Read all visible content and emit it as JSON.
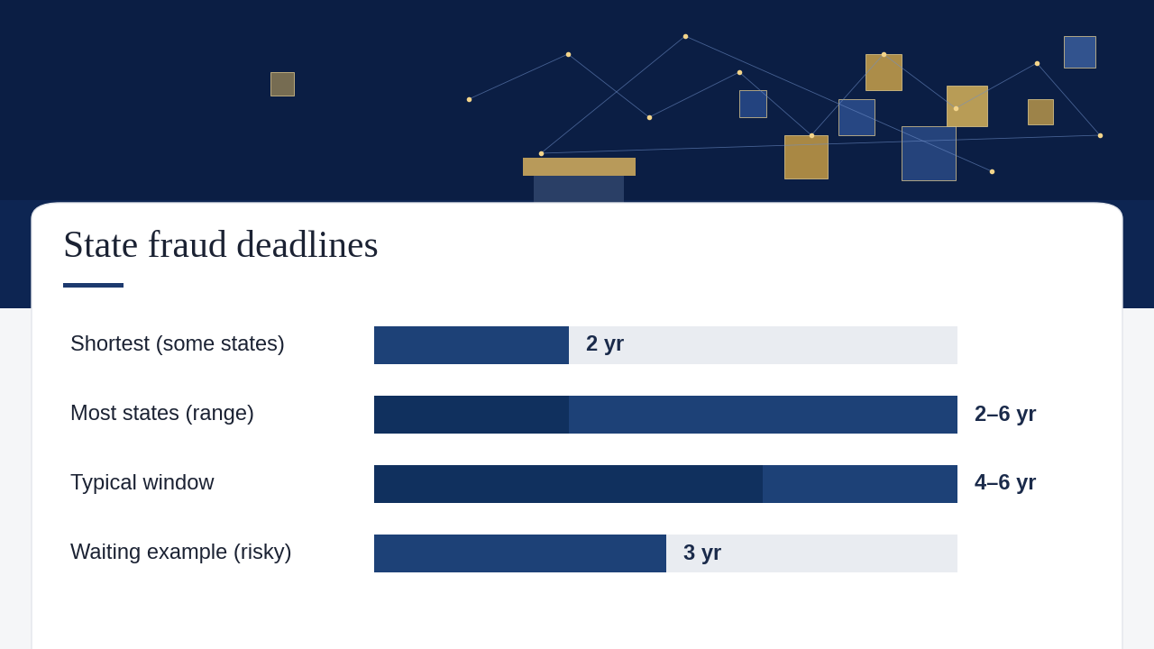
{
  "chart_data": {
    "type": "bar",
    "orientation": "horizontal",
    "title": "State fraud deadlines",
    "categories": [
      "Shortest (some states)",
      "Most states (range)",
      "Typical window",
      "Waiting example (risky)"
    ],
    "values": [
      2,
      6,
      6,
      3
    ],
    "low": [
      null,
      2,
      4,
      null
    ],
    "value_labels": [
      "2 yr",
      "2–6 yr",
      "4–6 yr",
      "3 yr"
    ],
    "xlim": [
      0,
      6
    ],
    "color": "#1d4177",
    "data_labels": true,
    "tick_labels": false,
    "grid": false
  }
}
